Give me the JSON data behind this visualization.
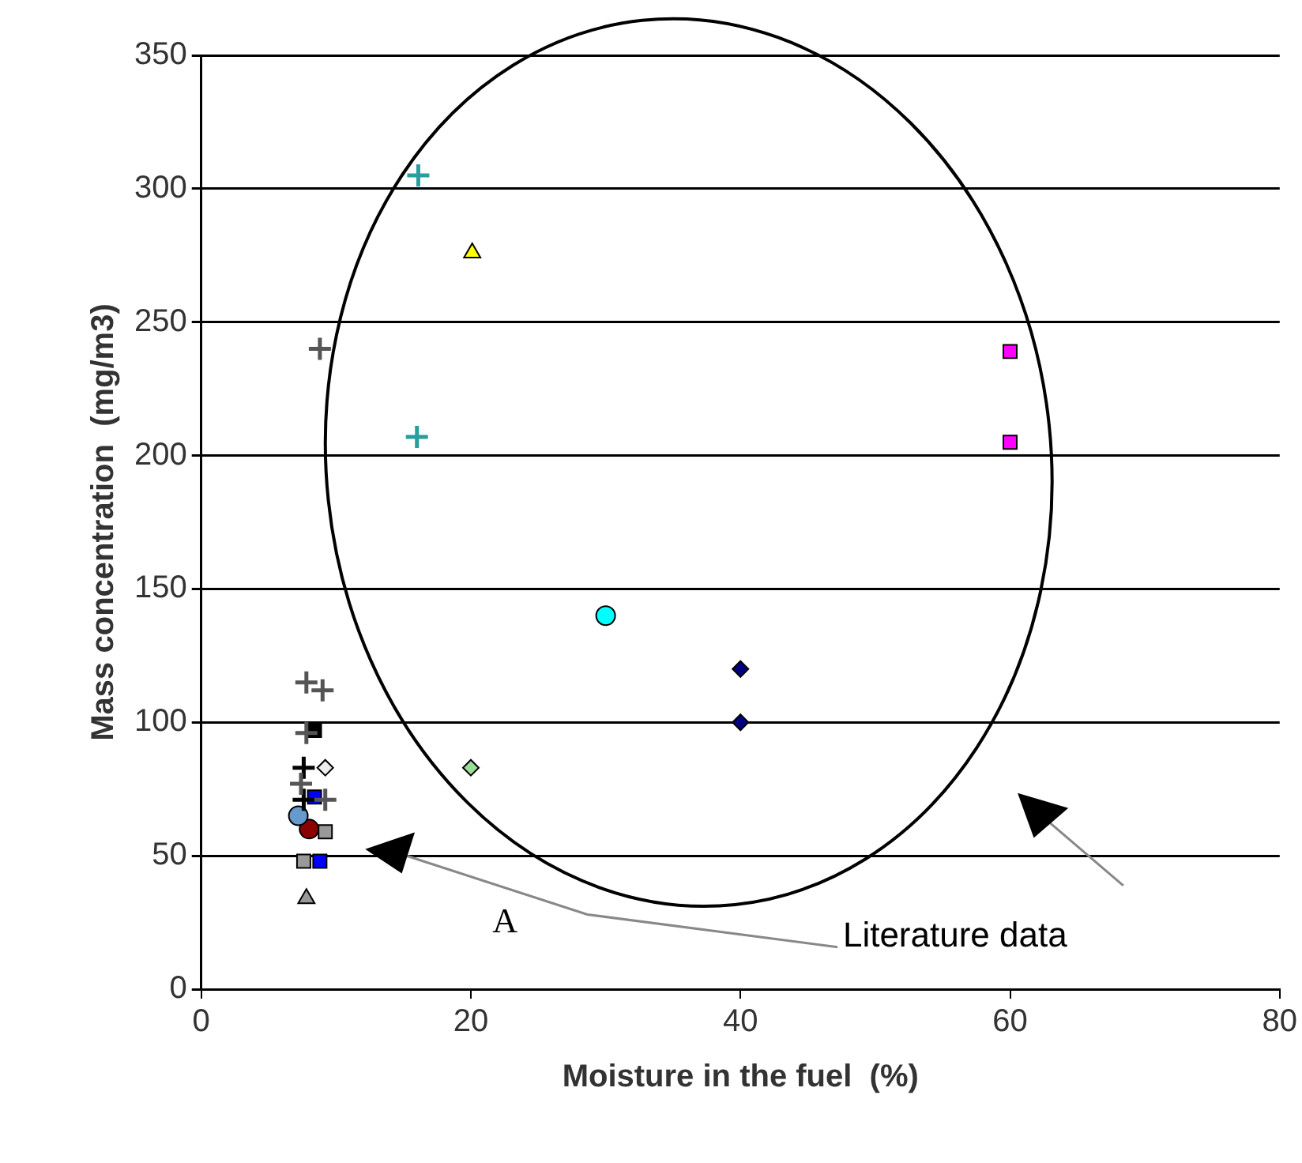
{
  "chart_data": {
    "type": "scatter",
    "xlabel": "Moisture in the fuel  (%)",
    "ylabel": "Mass concentration  (mg/m3)",
    "xlim": [
      0,
      80
    ],
    "xticks": [
      0,
      20,
      40,
      60,
      80
    ],
    "ylim": [
      0,
      350
    ],
    "yticks": [
      0,
      50,
      100,
      150,
      200,
      250,
      300,
      350
    ],
    "grid": "y",
    "legend": false,
    "annotations": [
      "A",
      "Literature data"
    ],
    "series": [
      {
        "color": "#555555",
        "marker": "cross",
        "x": [
          7.8,
          9.0,
          7.8,
          7.4,
          9.2,
          8.8
        ],
        "values": [
          115,
          112,
          96,
          77,
          71,
          240
        ]
      },
      {
        "color": "#000000",
        "marker": "cross",
        "x": [
          7.6,
          7.6
        ],
        "values": [
          83,
          71
        ]
      },
      {
        "color": "#2a9d9d",
        "marker": "cross",
        "x": [
          16,
          16.1
        ],
        "values": [
          207,
          305
        ]
      },
      {
        "color": "#000000",
        "marker": "square",
        "x": [
          8.4
        ],
        "values": [
          97
        ]
      },
      {
        "color": "#0000ff",
        "marker": "square",
        "x": [
          8.4,
          8.8
        ],
        "values": [
          72,
          48
        ]
      },
      {
        "color": "#999999",
        "marker": "square",
        "x": [
          9.2,
          7.6
        ],
        "values": [
          59,
          48
        ]
      },
      {
        "color": "#eeeeee",
        "marker": "diamond",
        "x": [
          9.2
        ],
        "values": [
          83
        ]
      },
      {
        "color": "#6699cc",
        "marker": "circle",
        "x": [
          7.2
        ],
        "values": [
          65
        ]
      },
      {
        "color": "#8b0000",
        "marker": "circle",
        "x": [
          8.0
        ],
        "values": [
          60
        ]
      },
      {
        "color": "#999999",
        "marker": "triangle",
        "x": [
          7.8
        ],
        "values": [
          34
        ]
      },
      {
        "color": "#ffff00",
        "marker": "triangle",
        "x": [
          20.1
        ],
        "values": [
          276
        ]
      },
      {
        "color": "#ff00ff",
        "marker": "square",
        "x": [
          60,
          60
        ],
        "values": [
          239,
          205
        ]
      },
      {
        "color": "#00ffff",
        "marker": "circle",
        "x": [
          30
        ],
        "values": [
          140
        ]
      },
      {
        "color": "#000080",
        "marker": "diamond",
        "x": [
          40,
          40
        ],
        "values": [
          120,
          100
        ]
      },
      {
        "color": "#99dd99",
        "marker": "diamond",
        "x": [
          20
        ],
        "values": [
          83
        ]
      }
    ]
  }
}
